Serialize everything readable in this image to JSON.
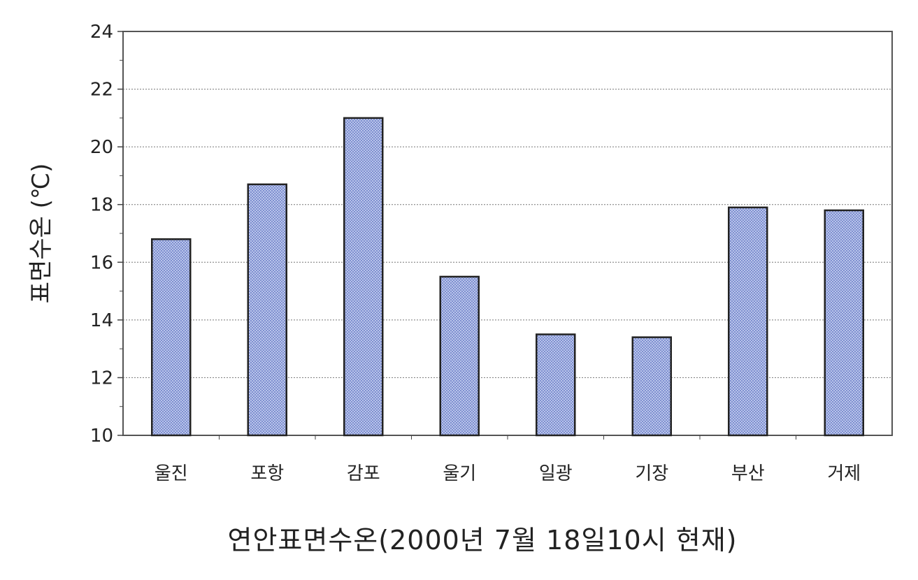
{
  "chart_data": {
    "type": "bar",
    "title": "연안표면수온(2000년 7월 18일10시 현재)",
    "xlabel": "",
    "ylabel": "표면수온 (℃)",
    "categories": [
      "울진",
      "포항",
      "감포",
      "울기",
      "일광",
      "기장",
      "부산",
      "거제"
    ],
    "values": [
      16.8,
      18.7,
      21.0,
      15.5,
      13.5,
      13.4,
      17.9,
      17.8
    ],
    "ylim": [
      10,
      24
    ],
    "yticks": [
      10,
      12,
      14,
      16,
      18,
      20,
      22,
      24
    ],
    "grid": true,
    "legend": "none",
    "bar_color": "#b9c5ea",
    "bar_pattern_color": "#7f8fd0",
    "bar_stroke": "#222222"
  }
}
